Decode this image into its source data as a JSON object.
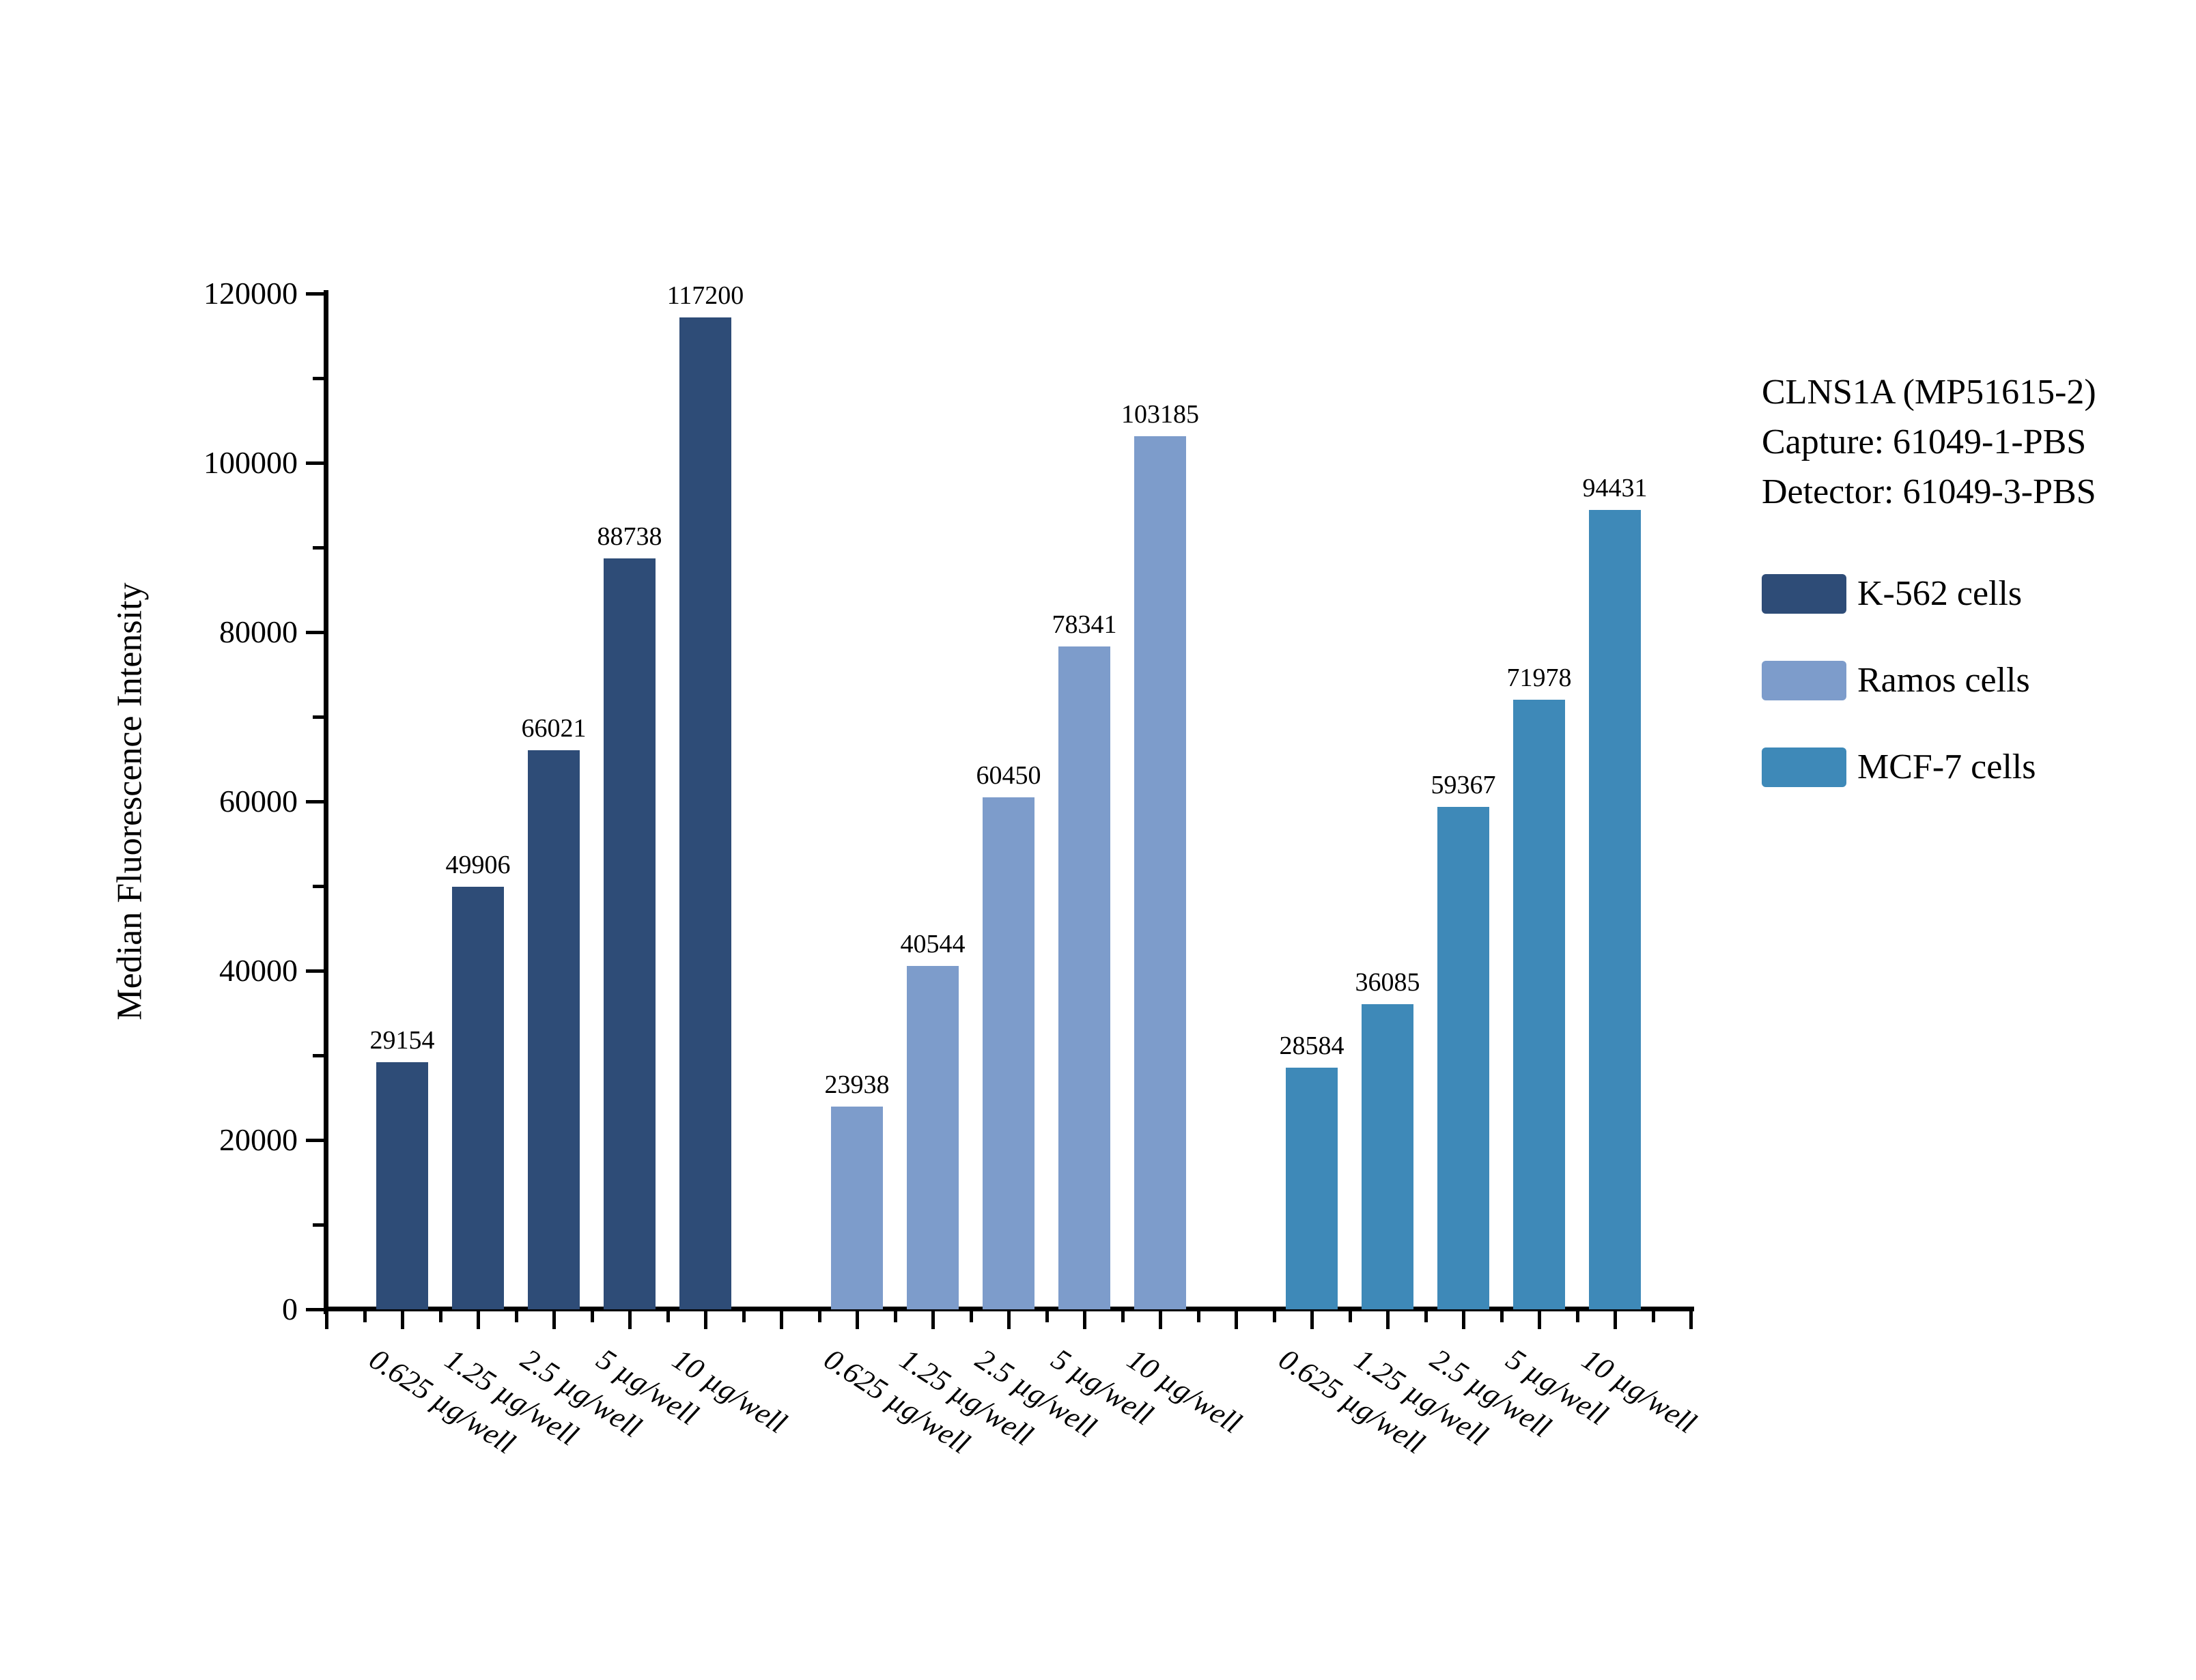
{
  "chart_data": {
    "type": "bar",
    "ylabel": "Median Fluorescence Intensity",
    "ylim": [
      0,
      120000
    ],
    "yticks": [
      0,
      20000,
      40000,
      60000,
      80000,
      100000,
      120000
    ],
    "ytick_step": 20000,
    "yminor_step": 10000,
    "grid": false,
    "legend_position": "right",
    "categories": [
      "0.625 µg/well",
      "1.25 µg/well",
      "2.5 µg/well",
      "5 µg/well",
      "10 µg/well"
    ],
    "series": [
      {
        "name": "K-562 cells",
        "color": "#2E4C77",
        "values": [
          29154,
          49906,
          66021,
          88738,
          117200
        ]
      },
      {
        "name": "Ramos cells",
        "color": "#7D9CCB",
        "values": [
          23938,
          40544,
          60450,
          78341,
          103185
        ]
      },
      {
        "name": "MCF-7 cells",
        "color": "#3E89B8",
        "values": [
          28584,
          36085,
          59367,
          71978,
          94431
        ]
      }
    ],
    "bar_value_labels": [
      [
        29154,
        49906,
        66021,
        88738,
        117200
      ],
      [
        23938,
        40544,
        60450,
        78341,
        103185
      ],
      [
        28584,
        36085,
        59367,
        71978,
        94431
      ]
    ],
    "annotation": {
      "lines": [
        "CLNS1A (MP51615-2)",
        "Capture: 61049-1-PBS",
        "Detector: 61049-3-PBS"
      ]
    },
    "axis_color": "#000000",
    "background_color": "#ffffff"
  }
}
